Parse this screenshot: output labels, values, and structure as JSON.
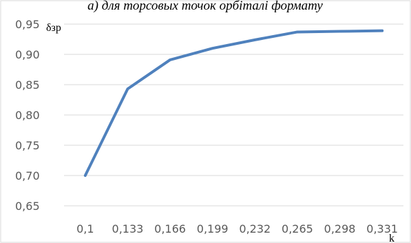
{
  "caption": "a) для торсовых точок орбіталі формату",
  "chart_data": {
    "type": "line",
    "ylabel": "δзр",
    "xlabel": "k",
    "categories": [
      "0,1",
      "0,133",
      "0,166",
      "0,199",
      "0,232",
      "0,265",
      "0,298",
      "0,331"
    ],
    "series": [
      {
        "values": [
          0.7,
          0.843,
          0.891,
          0.91,
          0.924,
          0.937,
          0.938,
          0.939
        ]
      }
    ],
    "ylim": [
      0.65,
      0.95
    ],
    "yticks": [
      "0,65",
      "0,70",
      "0,75",
      "0,80",
      "0,85",
      "0,90",
      "0,95"
    ],
    "grid": true,
    "line_color": "#4F81BD",
    "grid_color": "#D9D9D9",
    "frame_color": "#D9D9D9"
  }
}
